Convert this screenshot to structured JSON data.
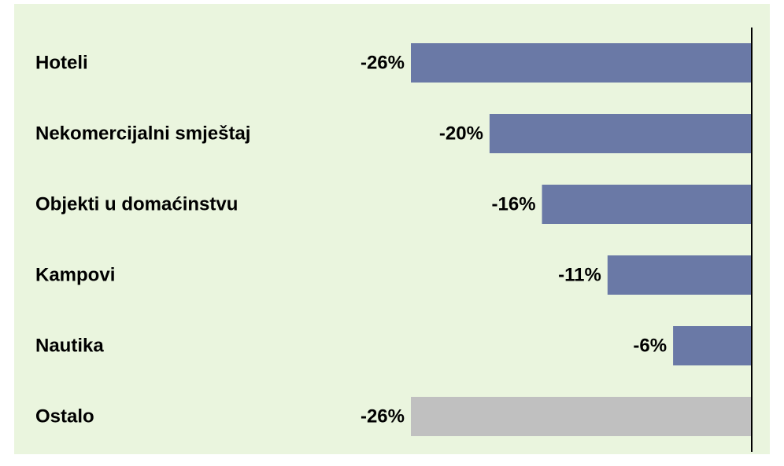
{
  "chart_data": {
    "type": "bar",
    "orientation": "horizontal",
    "categories": [
      "Hoteli",
      "Nekomercijalni smještaj",
      "Objekti u domaćinstvu",
      "Kampovi",
      "Nautika",
      "Ostalo"
    ],
    "values": [
      -26,
      -20,
      -16,
      -11,
      -6,
      -26
    ],
    "value_labels": [
      "-26%",
      "-20%",
      "-16%",
      "-11%",
      "-6%",
      "-26%"
    ],
    "colors": [
      "#6a79a6",
      "#6a79a6",
      "#6a79a6",
      "#6a79a6",
      "#6a79a6",
      "#c0c0c0"
    ],
    "xlim": [
      -26,
      0
    ]
  }
}
